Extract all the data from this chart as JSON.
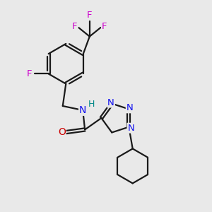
{
  "background_color": "#e9e9e9",
  "bond_color": "#1a1a1a",
  "bond_width": 1.6,
  "atom_colors": {
    "C": "#1a1a1a",
    "N": "#1010ee",
    "O": "#cc0000",
    "F": "#cc00cc",
    "H": "#008888"
  },
  "font_size_atom": 9.5
}
